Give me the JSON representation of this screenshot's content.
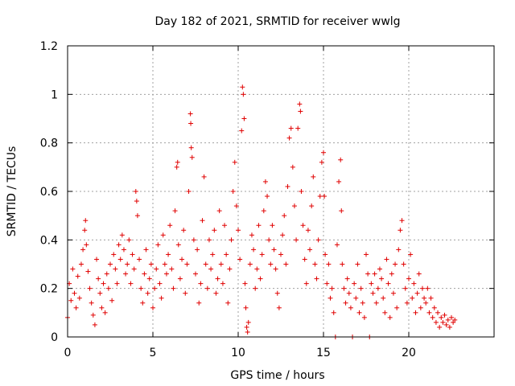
{
  "chart_data": {
    "type": "scatter",
    "title": "Day 182 of 2021, SRMTID for receiver wwlg",
    "xlabel": "GPS time / hours",
    "ylabel": "SRMTID / TECUs",
    "xlim": [
      0,
      25
    ],
    "ylim": [
      0,
      1.2
    ],
    "xticks": [
      0,
      5,
      10,
      15,
      20
    ],
    "xtick_labels": [
      "0",
      "5",
      "10",
      "15",
      "20"
    ],
    "yticks": [
      0,
      0.2,
      0.4,
      0.6,
      0.8,
      1.0,
      1.2
    ],
    "ytick_labels": [
      "0",
      "0.2",
      "0.4",
      "0.6",
      "0.8",
      "1",
      "1.2"
    ],
    "grid": true,
    "marker": "+",
    "color": "#e00000",
    "series": [
      {
        "name": "SRMTID",
        "points": [
          [
            0.0,
            0.08
          ],
          [
            0.1,
            0.22
          ],
          [
            0.2,
            0.15
          ],
          [
            0.3,
            0.28
          ],
          [
            0.4,
            0.18
          ],
          [
            0.5,
            0.12
          ],
          [
            0.6,
            0.25
          ],
          [
            0.7,
            0.16
          ],
          [
            0.8,
            0.3
          ],
          [
            0.9,
            0.36
          ],
          [
            1.0,
            0.44
          ],
          [
            1.05,
            0.48
          ],
          [
            1.1,
            0.38
          ],
          [
            1.2,
            0.27
          ],
          [
            1.3,
            0.2
          ],
          [
            1.4,
            0.14
          ],
          [
            1.5,
            0.09
          ],
          [
            1.6,
            0.05
          ],
          [
            1.7,
            0.32
          ],
          [
            1.8,
            0.24
          ],
          [
            1.9,
            0.18
          ],
          [
            2.0,
            0.12
          ],
          [
            2.1,
            0.22
          ],
          [
            2.2,
            0.1
          ],
          [
            2.3,
            0.26
          ],
          [
            2.4,
            0.2
          ],
          [
            2.5,
            0.3
          ],
          [
            2.6,
            0.15
          ],
          [
            2.7,
            0.34
          ],
          [
            2.8,
            0.28
          ],
          [
            2.9,
            0.22
          ],
          [
            3.0,
            0.38
          ],
          [
            3.1,
            0.32
          ],
          [
            3.2,
            0.42
          ],
          [
            3.3,
            0.36
          ],
          [
            3.4,
            0.26
          ],
          [
            3.5,
            0.3
          ],
          [
            3.6,
            0.4
          ],
          [
            3.7,
            0.22
          ],
          [
            3.8,
            0.34
          ],
          [
            3.9,
            0.28
          ],
          [
            4.0,
            0.6
          ],
          [
            4.05,
            0.56
          ],
          [
            4.1,
            0.5
          ],
          [
            4.2,
            0.32
          ],
          [
            4.3,
            0.2
          ],
          [
            4.4,
            0.14
          ],
          [
            4.5,
            0.26
          ],
          [
            4.6,
            0.36
          ],
          [
            4.7,
            0.18
          ],
          [
            4.8,
            0.24
          ],
          [
            4.9,
            0.3
          ],
          [
            5.0,
            0.12
          ],
          [
            5.1,
            0.2
          ],
          [
            5.2,
            0.28
          ],
          [
            5.3,
            0.38
          ],
          [
            5.4,
            0.22
          ],
          [
            5.5,
            0.16
          ],
          [
            5.6,
            0.42
          ],
          [
            5.7,
            0.3
          ],
          [
            5.8,
            0.26
          ],
          [
            5.9,
            0.34
          ],
          [
            6.0,
            0.46
          ],
          [
            6.1,
            0.28
          ],
          [
            6.2,
            0.2
          ],
          [
            6.3,
            0.52
          ],
          [
            6.4,
            0.7
          ],
          [
            6.45,
            0.72
          ],
          [
            6.5,
            0.38
          ],
          [
            6.6,
            0.24
          ],
          [
            6.7,
            0.32
          ],
          [
            6.8,
            0.44
          ],
          [
            6.9,
            0.18
          ],
          [
            7.0,
            0.3
          ],
          [
            7.1,
            0.6
          ],
          [
            7.2,
            0.92
          ],
          [
            7.22,
            0.88
          ],
          [
            7.25,
            0.78
          ],
          [
            7.3,
            0.74
          ],
          [
            7.4,
            0.4
          ],
          [
            7.5,
            0.26
          ],
          [
            7.6,
            0.36
          ],
          [
            7.7,
            0.14
          ],
          [
            7.8,
            0.22
          ],
          [
            7.9,
            0.48
          ],
          [
            8.0,
            0.66
          ],
          [
            8.1,
            0.3
          ],
          [
            8.2,
            0.2
          ],
          [
            8.3,
            0.4
          ],
          [
            8.4,
            0.28
          ],
          [
            8.5,
            0.34
          ],
          [
            8.6,
            0.44
          ],
          [
            8.7,
            0.18
          ],
          [
            8.8,
            0.24
          ],
          [
            8.9,
            0.52
          ],
          [
            9.0,
            0.3
          ],
          [
            9.1,
            0.22
          ],
          [
            9.2,
            0.46
          ],
          [
            9.3,
            0.34
          ],
          [
            9.4,
            0.14
          ],
          [
            9.5,
            0.28
          ],
          [
            9.6,
            0.4
          ],
          [
            9.7,
            0.6
          ],
          [
            9.8,
            0.72
          ],
          [
            9.9,
            0.54
          ],
          [
            10.0,
            0.44
          ],
          [
            10.1,
            0.32
          ],
          [
            10.2,
            0.85
          ],
          [
            10.25,
            1.03
          ],
          [
            10.3,
            1.0
          ],
          [
            10.35,
            0.9
          ],
          [
            10.4,
            0.22
          ],
          [
            10.45,
            0.12
          ],
          [
            10.5,
            0.04
          ],
          [
            10.55,
            0.02
          ],
          [
            10.6,
            0.06
          ],
          [
            10.7,
            0.3
          ],
          [
            10.8,
            0.42
          ],
          [
            10.9,
            0.36
          ],
          [
            11.0,
            0.2
          ],
          [
            11.1,
            0.28
          ],
          [
            11.2,
            0.46
          ],
          [
            11.3,
            0.24
          ],
          [
            11.4,
            0.34
          ],
          [
            11.5,
            0.52
          ],
          [
            11.6,
            0.64
          ],
          [
            11.7,
            0.58
          ],
          [
            11.8,
            0.4
          ],
          [
            11.9,
            0.3
          ],
          [
            12.0,
            0.46
          ],
          [
            12.1,
            0.36
          ],
          [
            12.2,
            0.28
          ],
          [
            12.3,
            0.18
          ],
          [
            12.4,
            0.12
          ],
          [
            12.5,
            0.34
          ],
          [
            12.6,
            0.42
          ],
          [
            12.7,
            0.5
          ],
          [
            12.8,
            0.3
          ],
          [
            12.9,
            0.62
          ],
          [
            13.0,
            0.82
          ],
          [
            13.1,
            0.86
          ],
          [
            13.2,
            0.7
          ],
          [
            13.3,
            0.54
          ],
          [
            13.4,
            0.4
          ],
          [
            13.5,
            0.86
          ],
          [
            13.6,
            0.96
          ],
          [
            13.65,
            0.93
          ],
          [
            13.7,
            0.6
          ],
          [
            13.8,
            0.46
          ],
          [
            13.9,
            0.32
          ],
          [
            14.0,
            0.22
          ],
          [
            14.1,
            0.44
          ],
          [
            14.2,
            0.36
          ],
          [
            14.3,
            0.54
          ],
          [
            14.4,
            0.66
          ],
          [
            14.5,
            0.3
          ],
          [
            14.6,
            0.24
          ],
          [
            14.7,
            0.4
          ],
          [
            14.8,
            0.58
          ],
          [
            14.9,
            0.72
          ],
          [
            15.0,
            0.76
          ],
          [
            15.05,
            0.58
          ],
          [
            15.1,
            0.34
          ],
          [
            15.2,
            0.22
          ],
          [
            15.3,
            0.3
          ],
          [
            15.4,
            0.16
          ],
          [
            15.5,
            0.2
          ],
          [
            15.6,
            0.1
          ],
          [
            15.7,
            0.0
          ],
          [
            15.8,
            0.38
          ],
          [
            15.9,
            0.64
          ],
          [
            16.0,
            0.73
          ],
          [
            16.05,
            0.52
          ],
          [
            16.1,
            0.3
          ],
          [
            16.2,
            0.2
          ],
          [
            16.3,
            0.14
          ],
          [
            16.4,
            0.24
          ],
          [
            16.5,
            0.18
          ],
          [
            16.6,
            0.12
          ],
          [
            16.7,
            0.0
          ],
          [
            16.8,
            0.22
          ],
          [
            16.9,
            0.16
          ],
          [
            17.0,
            0.3
          ],
          [
            17.1,
            0.1
          ],
          [
            17.2,
            0.2
          ],
          [
            17.3,
            0.14
          ],
          [
            17.4,
            0.08
          ],
          [
            17.5,
            0.34
          ],
          [
            17.6,
            0.26
          ],
          [
            17.7,
            0.0
          ],
          [
            17.8,
            0.22
          ],
          [
            17.9,
            0.18
          ],
          [
            18.0,
            0.26
          ],
          [
            18.1,
            0.14
          ],
          [
            18.2,
            0.2
          ],
          [
            18.3,
            0.28
          ],
          [
            18.4,
            0.24
          ],
          [
            18.5,
            0.16
          ],
          [
            18.6,
            0.1
          ],
          [
            18.7,
            0.32
          ],
          [
            18.8,
            0.22
          ],
          [
            18.9,
            0.08
          ],
          [
            19.0,
            0.26
          ],
          [
            19.1,
            0.18
          ],
          [
            19.2,
            0.3
          ],
          [
            19.3,
            0.12
          ],
          [
            19.4,
            0.36
          ],
          [
            19.5,
            0.44
          ],
          [
            19.6,
            0.48
          ],
          [
            19.7,
            0.3
          ],
          [
            19.8,
            0.2
          ],
          [
            19.9,
            0.14
          ],
          [
            20.0,
            0.24
          ],
          [
            20.1,
            0.34
          ],
          [
            20.2,
            0.16
          ],
          [
            20.3,
            0.22
          ],
          [
            20.4,
            0.1
          ],
          [
            20.5,
            0.18
          ],
          [
            20.6,
            0.26
          ],
          [
            20.7,
            0.12
          ],
          [
            20.8,
            0.2
          ],
          [
            20.9,
            0.16
          ],
          [
            21.0,
            0.14
          ],
          [
            21.1,
            0.2
          ],
          [
            21.2,
            0.1
          ],
          [
            21.3,
            0.16
          ],
          [
            21.4,
            0.08
          ],
          [
            21.5,
            0.12
          ],
          [
            21.6,
            0.06
          ],
          [
            21.7,
            0.1
          ],
          [
            21.8,
            0.04
          ],
          [
            21.9,
            0.08
          ],
          [
            22.0,
            0.06
          ],
          [
            22.1,
            0.09
          ],
          [
            22.2,
            0.05
          ],
          [
            22.3,
            0.07
          ],
          [
            22.4,
            0.04
          ],
          [
            22.5,
            0.08
          ],
          [
            22.6,
            0.06
          ],
          [
            22.7,
            0.07
          ]
        ]
      }
    ]
  }
}
